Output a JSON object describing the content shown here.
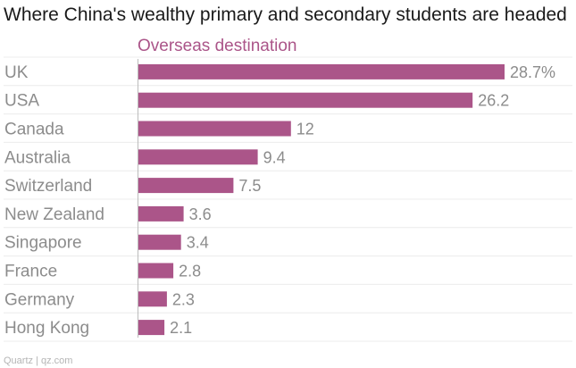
{
  "chart_data": {
    "type": "bar",
    "orientation": "horizontal",
    "title": "Where China's wealthy primary and secondary students are headed",
    "series": [
      {
        "name": "Overseas destination",
        "values": [
          28.7,
          26.2,
          12,
          9.4,
          7.5,
          3.6,
          3.4,
          2.8,
          2.3,
          2.1
        ],
        "value_labels": [
          "28.7%",
          "26.2",
          "12",
          "9.4",
          "7.5",
          "3.6",
          "3.4",
          "2.8",
          "2.3",
          "2.1"
        ]
      }
    ],
    "categories": [
      "UK",
      "USA",
      "Canada",
      "Australia",
      "Switzerland",
      "New Zealand",
      "Singapore",
      "France",
      "Germany",
      "Hong Kong"
    ],
    "xlim": [
      0,
      28.7
    ],
    "grid": true,
    "colors": {
      "bar": "#ab5589",
      "series_label": "#ab5589",
      "gridline": "#ececec",
      "axis": "#bcbcbc"
    }
  },
  "footer": {
    "credit": "Quartz | qz.com"
  }
}
